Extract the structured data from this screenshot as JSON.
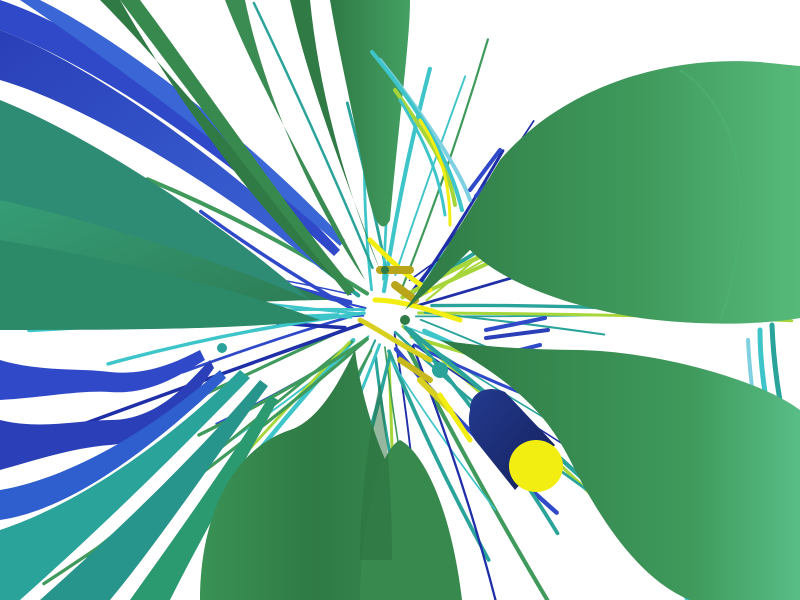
{
  "scene": {
    "description_visible_text": "",
    "palette": {
      "background": "#ffffff",
      "dark_green": "#2f7a45",
      "mid_green": "#3f9a5c",
      "light_green": "#56b97a",
      "teal": "#2aa39a",
      "cyan": "#3ec5c9",
      "blue": "#2f49c9",
      "deep_blue": "#1f2fa8",
      "navy": "#1b2a70",
      "yellow_green": "#a6d63a",
      "yellow": "#f2ee12",
      "gold": "#b8a51a"
    }
  }
}
